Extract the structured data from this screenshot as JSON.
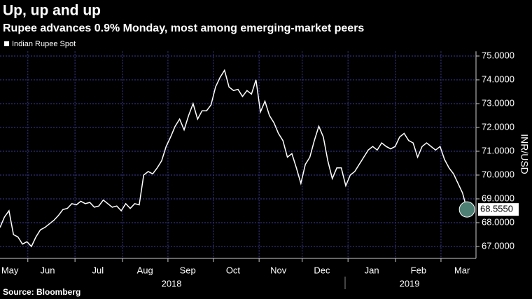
{
  "chart_data": {
    "type": "line",
    "title": "Up, up and up",
    "subtitle": "Rupee advances 0.9% Monday, most among emerging-market peers",
    "y_label": "INR/USD",
    "source": "Source: Bloomberg",
    "series": [
      {
        "name": "Indian Rupee Spot",
        "color": "#ffffff",
        "values": [
          67.8,
          68.24,
          68.5,
          67.5,
          67.4,
          67.1,
          67.2,
          67.0,
          67.4,
          67.7,
          67.8,
          67.95,
          68.1,
          68.3,
          68.55,
          68.6,
          68.8,
          68.75,
          68.9,
          68.8,
          68.85,
          68.65,
          68.7,
          68.95,
          68.8,
          68.65,
          68.7,
          68.5,
          68.8,
          68.6,
          68.8,
          68.75,
          70.0,
          70.15,
          70.05,
          70.3,
          70.6,
          71.2,
          71.6,
          72.05,
          72.35,
          71.9,
          72.5,
          73.0,
          72.35,
          72.7,
          72.7,
          72.95,
          73.7,
          74.1,
          74.4,
          73.7,
          73.55,
          73.6,
          73.3,
          73.55,
          73.4,
          74.0,
          72.65,
          73.1,
          72.5,
          72.2,
          71.75,
          71.45,
          70.75,
          70.9,
          70.3,
          69.65,
          70.45,
          70.75,
          71.45,
          72.05,
          71.6,
          70.6,
          69.85,
          70.3,
          70.3,
          69.55,
          70.0,
          70.15,
          70.45,
          70.75,
          71.05,
          71.2,
          71.05,
          71.35,
          71.2,
          71.1,
          71.2,
          71.6,
          71.75,
          71.45,
          71.35,
          70.75,
          71.2,
          71.35,
          71.2,
          71.05,
          71.2,
          70.65,
          70.3,
          70.05,
          69.65,
          69.25,
          68.555
        ],
        "last_label": "68.5550"
      }
    ],
    "xlim": [
      0,
      106
    ],
    "xticks": [
      6.2,
      16.7,
      27.3,
      37.4,
      47.5,
      57.7,
      67.3,
      77.5,
      88.1,
      98.2
    ],
    "month_labels": [
      {
        "value": 2.2,
        "label": "May"
      },
      {
        "value": 10.6,
        "label": "Jun"
      },
      {
        "value": 21.8,
        "label": "Jul"
      },
      {
        "value": 32.3,
        "label": "Aug"
      },
      {
        "value": 41.8,
        "label": "Sep"
      },
      {
        "value": 51.9,
        "label": "Oct"
      },
      {
        "value": 62,
        "label": "Nov"
      },
      {
        "value": 71.7,
        "label": "Dec"
      },
      {
        "value": 82.8,
        "label": "Jan"
      },
      {
        "value": 93.2,
        "label": "Feb"
      },
      {
        "value": 102.9,
        "label": "Mar"
      }
    ],
    "year_labels": [
      {
        "value": 38.2,
        "label": "2018"
      },
      {
        "value": 91.2,
        "label": "2019"
      }
    ],
    "ylim": [
      66.5,
      75.2
    ],
    "yticks": [
      {
        "value": 67,
        "label": "67.0000"
      },
      {
        "value": 68,
        "label": "68.0000"
      },
      {
        "value": 69,
        "label": "69.0000"
      },
      {
        "value": 70,
        "label": "70.0000"
      },
      {
        "value": 71,
        "label": "71.0000"
      },
      {
        "value": 72,
        "label": "72.0000"
      },
      {
        "value": 73,
        "label": "73.0000"
      },
      {
        "value": 74,
        "label": "74.0000"
      },
      {
        "value": 75,
        "label": "75.0000"
      }
    ],
    "grid": true
  }
}
